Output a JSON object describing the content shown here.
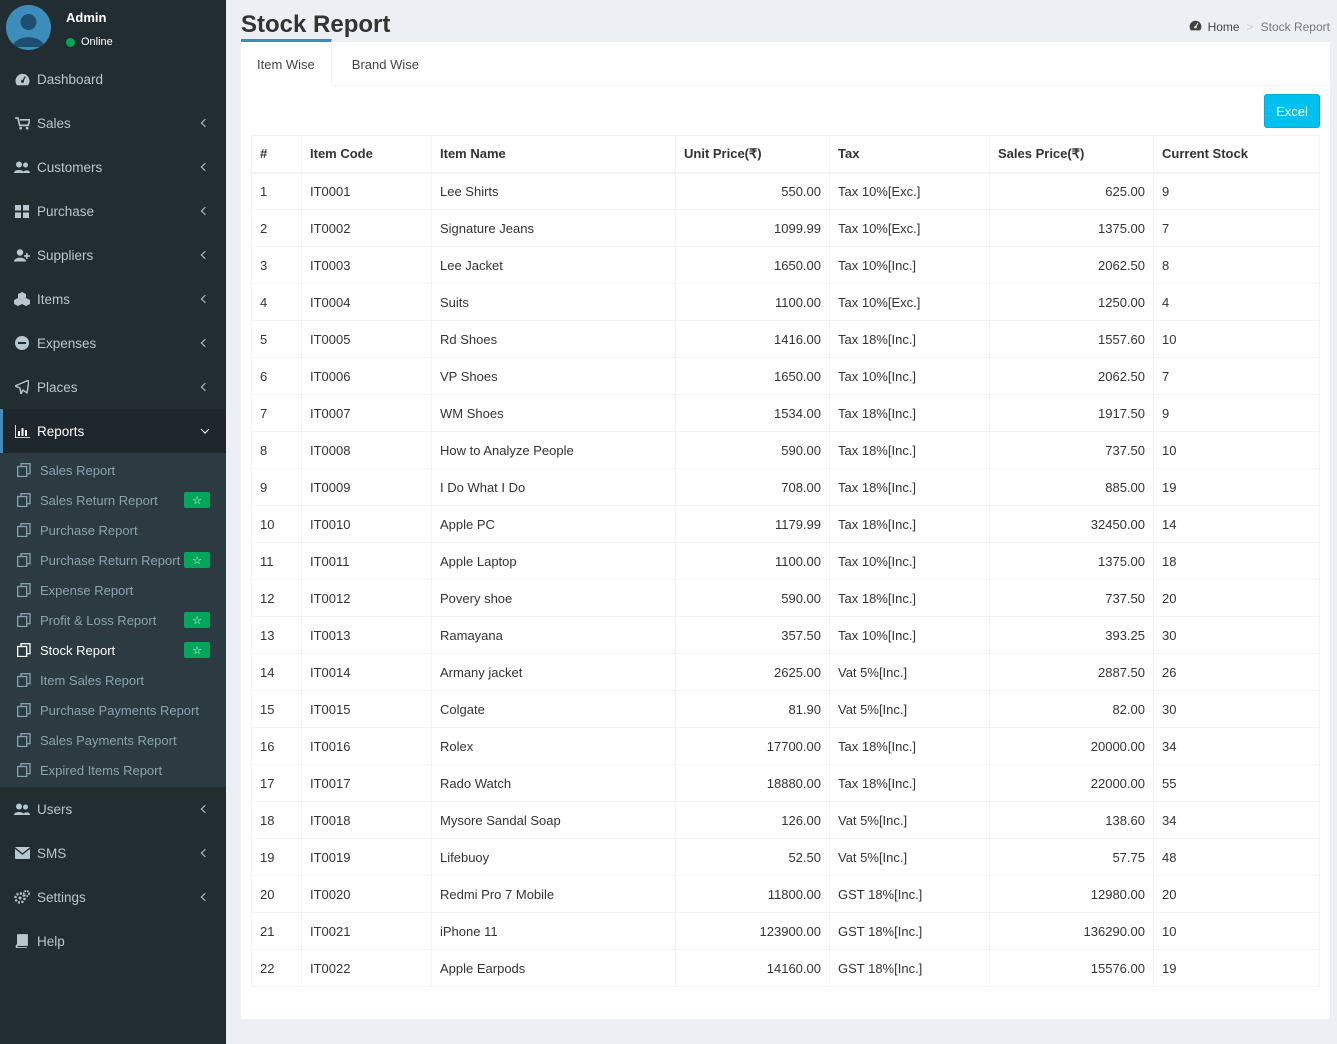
{
  "user": {
    "name": "Admin",
    "status": "Online"
  },
  "sidebar": {
    "items": [
      {
        "label": "Dashboard",
        "icon": "dashboard-icon",
        "has_children": false
      },
      {
        "label": "Sales",
        "icon": "cart-icon",
        "has_children": true
      },
      {
        "label": "Customers",
        "icon": "users-icon",
        "has_children": true
      },
      {
        "label": "Purchase",
        "icon": "grid-icon",
        "has_children": true
      },
      {
        "label": "Suppliers",
        "icon": "user-plus-icon",
        "has_children": true
      },
      {
        "label": "Items",
        "icon": "cubes-icon",
        "has_children": true
      },
      {
        "label": "Expenses",
        "icon": "minus-circle-icon",
        "has_children": true
      },
      {
        "label": "Places",
        "icon": "paper-plane-icon",
        "has_children": true
      },
      {
        "label": "Reports",
        "icon": "bar-chart-icon",
        "has_children": true,
        "active": true
      }
    ],
    "reports_submenu": [
      {
        "label": "Sales Report",
        "starred": false
      },
      {
        "label": "Sales Return Report",
        "starred": true
      },
      {
        "label": "Purchase Report",
        "starred": false
      },
      {
        "label": "Purchase Return Report",
        "starred": true
      },
      {
        "label": "Expense Report",
        "starred": false
      },
      {
        "label": "Profit & Loss Report",
        "starred": true
      },
      {
        "label": "Stock Report",
        "starred": true,
        "current": true
      },
      {
        "label": "Item Sales Report",
        "starred": false
      },
      {
        "label": "Purchase Payments Report",
        "starred": false
      },
      {
        "label": "Sales Payments Report",
        "starred": false
      },
      {
        "label": "Expired Items Report",
        "starred": false
      }
    ],
    "items_after": [
      {
        "label": "Users",
        "icon": "users-icon",
        "has_children": true
      },
      {
        "label": "SMS",
        "icon": "envelope-icon",
        "has_children": true
      },
      {
        "label": "Settings",
        "icon": "cogs-icon",
        "has_children": true
      },
      {
        "label": "Help",
        "icon": "book-icon",
        "has_children": false
      }
    ]
  },
  "page": {
    "title": "Stock Report",
    "breadcrumb": {
      "home": "Home",
      "current": "Stock Report"
    },
    "tabs": [
      {
        "label": "Item Wise",
        "active": true
      },
      {
        "label": "Brand Wise",
        "active": false
      }
    ],
    "excel_label": "Excel"
  },
  "table": {
    "columns": [
      "#",
      "Item Code",
      "Item Name",
      "Unit Price(₹)",
      "Tax",
      "Sales Price(₹)",
      "Current Stock"
    ],
    "rows": [
      [
        "1",
        "IT0001",
        "Lee Shirts",
        "550.00",
        "Tax 10%[Exc.]",
        "625.00",
        "9"
      ],
      [
        "2",
        "IT0002",
        "Signature Jeans",
        "1099.99",
        "Tax 10%[Exc.]",
        "1375.00",
        "7"
      ],
      [
        "3",
        "IT0003",
        "Lee Jacket",
        "1650.00",
        "Tax 10%[Inc.]",
        "2062.50",
        "8"
      ],
      [
        "4",
        "IT0004",
        "Suits",
        "1100.00",
        "Tax 10%[Exc.]",
        "1250.00",
        "4"
      ],
      [
        "5",
        "IT0005",
        "Rd Shoes",
        "1416.00",
        "Tax 18%[Inc.]",
        "1557.60",
        "10"
      ],
      [
        "6",
        "IT0006",
        "VP Shoes",
        "1650.00",
        "Tax 10%[Inc.]",
        "2062.50",
        "7"
      ],
      [
        "7",
        "IT0007",
        "WM Shoes",
        "1534.00",
        "Tax 18%[Inc.]",
        "1917.50",
        "9"
      ],
      [
        "8",
        "IT0008",
        "How to Analyze People",
        "590.00",
        "Tax 18%[Inc.]",
        "737.50",
        "10"
      ],
      [
        "9",
        "IT0009",
        "I Do What I Do",
        "708.00",
        "Tax 18%[Inc.]",
        "885.00",
        "19"
      ],
      [
        "10",
        "IT0010",
        "Apple PC",
        "1179.99",
        "Tax 18%[Inc.]",
        "32450.00",
        "14"
      ],
      [
        "11",
        "IT0011",
        "Apple Laptop",
        "1100.00",
        "Tax 10%[Inc.]",
        "1375.00",
        "18"
      ],
      [
        "12",
        "IT0012",
        "Povery shoe",
        "590.00",
        "Tax 18%[Inc.]",
        "737.50",
        "20"
      ],
      [
        "13",
        "IT0013",
        "Ramayana",
        "357.50",
        "Tax 10%[Inc.]",
        "393.25",
        "30"
      ],
      [
        "14",
        "IT0014",
        "Armany jacket",
        "2625.00",
        "Vat 5%[Inc.]",
        "2887.50",
        "26"
      ],
      [
        "15",
        "IT0015",
        "Colgate",
        "81.90",
        "Vat 5%[Inc.]",
        "82.00",
        "30"
      ],
      [
        "16",
        "IT0016",
        "Rolex",
        "17700.00",
        "Tax 18%[Inc.]",
        "20000.00",
        "34"
      ],
      [
        "17",
        "IT0017",
        "Rado Watch",
        "18880.00",
        "Tax 18%[Inc.]",
        "22000.00",
        "55"
      ],
      [
        "18",
        "IT0018",
        "Mysore Sandal Soap",
        "126.00",
        "Vat 5%[Inc.]",
        "138.60",
        "34"
      ],
      [
        "19",
        "IT0019",
        "Lifebuoy",
        "52.50",
        "Vat 5%[Inc.]",
        "57.75",
        "48"
      ],
      [
        "20",
        "IT0020",
        "Redmi Pro 7 Mobile",
        "11800.00",
        "GST 18%[Inc.]",
        "12980.00",
        "20"
      ],
      [
        "21",
        "IT0021",
        "iPhone 11",
        "123900.00",
        "GST 18%[Inc.]",
        "136290.00",
        "10"
      ],
      [
        "22",
        "IT0022",
        "Apple Earpods",
        "14160.00",
        "GST 18%[Inc.]",
        "15576.00",
        "19"
      ]
    ]
  },
  "colors": {
    "sidebar_bg": "#222d32",
    "submenu_bg": "#2c3b41",
    "accent": "#3c8dbc",
    "excel_btn": "#00c0ef",
    "badge": "#00a65a"
  }
}
